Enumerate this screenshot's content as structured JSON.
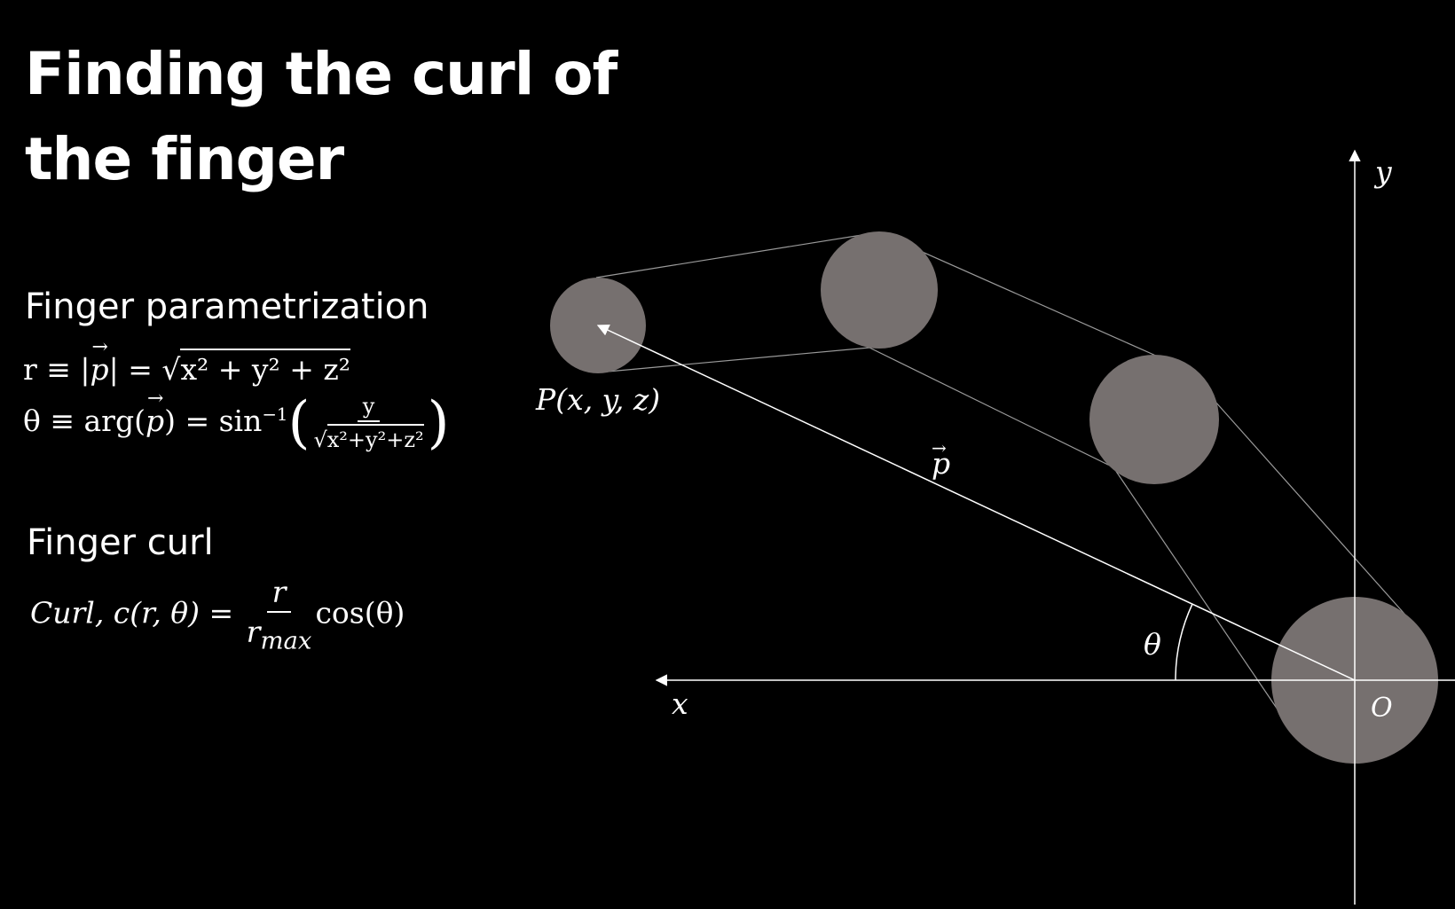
{
  "title": {
    "line1": "Finding the curl of",
    "line2": "the finger"
  },
  "section1": {
    "heading": "Finger parametrization"
  },
  "section2": {
    "heading": "Finger curl"
  },
  "equations": {
    "r_def": {
      "lhs": "r ≡ |",
      "vec": "p",
      "mid": "| = √",
      "rad": "x² + y² + z²"
    },
    "theta_def": {
      "lhs": "θ ≡ arg(",
      "vec": "p",
      "mid": ") = sin",
      "exp": "−1",
      "num": "y",
      "den": "x²+y²+z²"
    },
    "curl_def": {
      "lhs": "Curl, c(r, θ) = ",
      "num": "r",
      "den": "r",
      "den_sub": "max",
      "rhs": "cos(θ)"
    }
  },
  "diagram": {
    "labels": {
      "y_axis": "y",
      "x_axis": "x",
      "origin": "O",
      "point": "P(x, y, z)",
      "vector": "p",
      "angle": "θ"
    },
    "colors": {
      "joint": "#76706f",
      "axis": "#ffffff",
      "outline": "#9a9a9a"
    }
  }
}
